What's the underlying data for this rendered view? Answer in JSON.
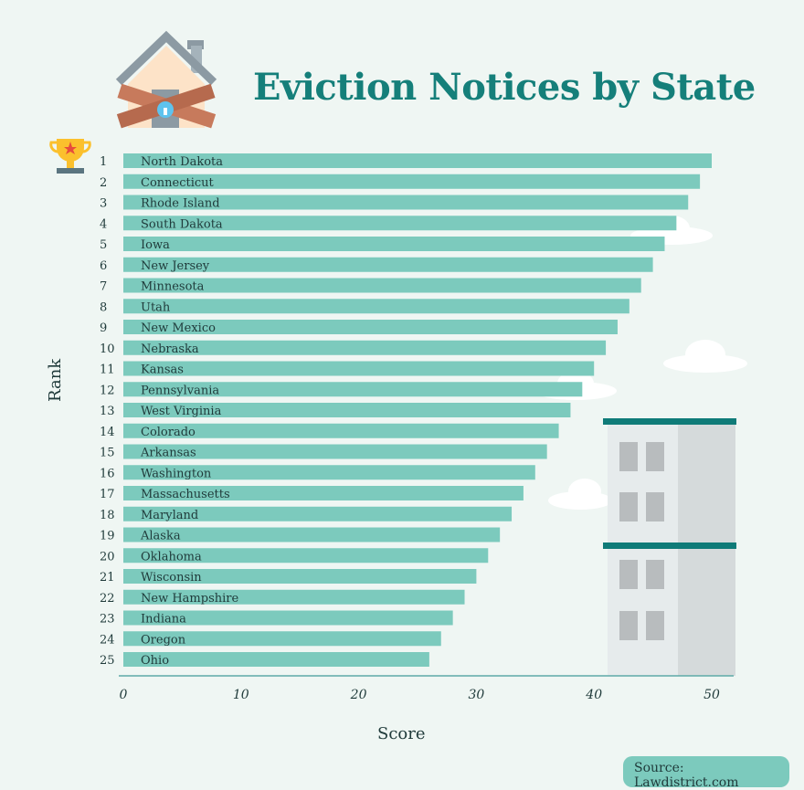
{
  "chart_data": {
    "type": "bar",
    "orientation": "horizontal",
    "title": "Eviction Notices by State",
    "xlabel": "Score",
    "ylabel": "Rank",
    "xlim": [
      0,
      52
    ],
    "xticks": [
      0,
      10,
      20,
      30,
      40,
      50
    ],
    "grid": false,
    "bar_color": "#7ccabd",
    "ranks": [
      1,
      2,
      3,
      4,
      5,
      6,
      7,
      8,
      9,
      10,
      11,
      12,
      13,
      14,
      15,
      16,
      17,
      18,
      19,
      20,
      21,
      22,
      23,
      24,
      25
    ],
    "categories": [
      "North Dakota",
      "Connecticut",
      "Rhode Island",
      "South Dakota",
      "Iowa",
      "New Jersey",
      "Minnesota",
      "Utah",
      "New Mexico",
      "Nebraska",
      "Kansas",
      "Pennsylvania",
      "West Virginia",
      "Colorado",
      "Arkansas",
      "Washington",
      "Massachusetts",
      "Maryland",
      "Alaska",
      "Oklahoma",
      "Wisconsin",
      "New Hampshire",
      "Indiana",
      "Oregon",
      "Ohio"
    ],
    "values": [
      50,
      49,
      48,
      47,
      46,
      45,
      44,
      43,
      42,
      41,
      40,
      39,
      38,
      37,
      36,
      35,
      34,
      33,
      32,
      31,
      30,
      29,
      28,
      27,
      26
    ]
  },
  "source": "Source: Lawdistrict.com",
  "colors": {
    "title": "#157f7a",
    "background": "#eff6f3",
    "axis": "#5fa9a8"
  },
  "icons": [
    "house-icon",
    "trophy-icon",
    "building-icon",
    "cloud-icon"
  ]
}
